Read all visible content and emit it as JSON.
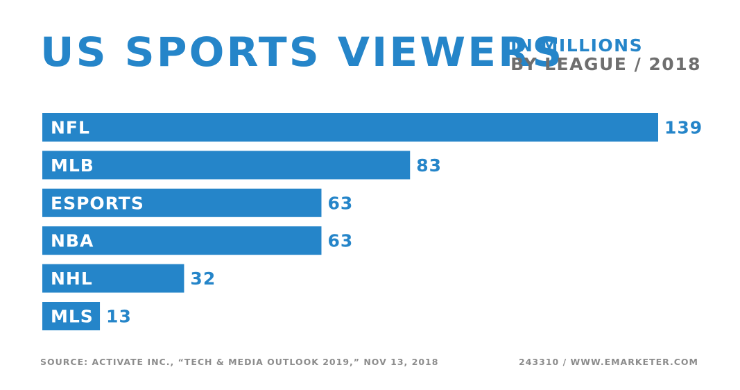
{
  "header": {
    "title": "US SPORTS VIEWERS",
    "subtitle_line1": "IN MILLIONS",
    "subtitle_line2": "BY LEAGUE / 2018"
  },
  "colors": {
    "bar": "#2585c9",
    "title": "#2585c9",
    "subtitle_secondary": "#6e6e6e",
    "value_label": "#2585c9",
    "bar_label": "#ffffff",
    "footer": "#8c8c8c"
  },
  "chart_data": {
    "type": "bar",
    "orientation": "horizontal",
    "title": "US SPORTS VIEWERS",
    "subtitle": "IN MILLIONS BY LEAGUE / 2018",
    "categories": [
      "NFL",
      "MLB",
      "ESPORTS",
      "NBA",
      "NHL",
      "MLS"
    ],
    "values": [
      139,
      83,
      63,
      63,
      32,
      13
    ],
    "value_labels": [
      "139",
      "83",
      "63",
      "63",
      "32",
      "13"
    ],
    "xlim": [
      0,
      139
    ],
    "grid": false,
    "legend": "none"
  },
  "footer": {
    "source": "SOURCE: ACTIVATE INC., “TECH & MEDIA OUTLOOK 2019,” NOV 13, 2018",
    "id": "243310 / WWW.EMARKETER.COM"
  }
}
